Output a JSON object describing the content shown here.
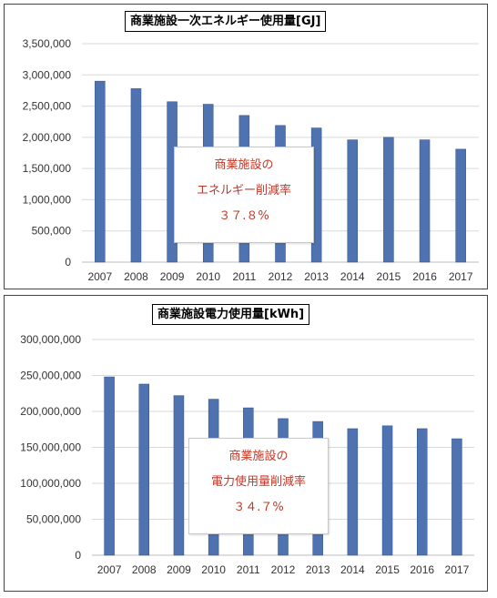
{
  "chart_data": [
    {
      "type": "bar",
      "title": "商業施設一次エネルギー使用量[GJ]",
      "categories": [
        "2007",
        "2008",
        "2009",
        "2010",
        "2011",
        "2012",
        "2013",
        "2014",
        "2015",
        "2016",
        "2017"
      ],
      "values": [
        2900000,
        2780000,
        2570000,
        2530000,
        2350000,
        2190000,
        2150000,
        1960000,
        2000000,
        1960000,
        1810000
      ],
      "ylim": [
        0,
        3500000
      ],
      "yticks": [
        0,
        500000,
        1000000,
        1500000,
        2000000,
        2500000,
        3000000,
        3500000
      ],
      "ytick_labels": [
        "0",
        "500,000",
        "1,000,000",
        "1,500,000",
        "2,000,000",
        "2,500,000",
        "3,000,000",
        "3,500,000"
      ],
      "grid": true,
      "bar_color": "#4f73b0",
      "annotation": {
        "line1": "商業施設の",
        "line2": "エネルギー削減率",
        "line3": "３７.８%"
      }
    },
    {
      "type": "bar",
      "title": "商業施設電力使用量[kWh]",
      "categories": [
        "2007",
        "2008",
        "2009",
        "2010",
        "2011",
        "2012",
        "2013",
        "2014",
        "2015",
        "2016",
        "2017"
      ],
      "values": [
        248000000,
        238000000,
        222000000,
        217000000,
        205000000,
        190000000,
        186000000,
        176000000,
        180000000,
        176000000,
        162000000
      ],
      "ylim": [
        0,
        300000000
      ],
      "yticks": [
        0,
        50000000,
        100000000,
        150000000,
        200000000,
        250000000,
        300000000
      ],
      "ytick_labels": [
        "0",
        "50,000,000",
        "100,000,000",
        "150,000,000",
        "200,000,000",
        "250,000,000",
        "300,000,000"
      ],
      "grid": true,
      "bar_color": "#4f73b0",
      "annotation": {
        "line1": "商業施設の",
        "line2": "電力使用量削減率",
        "line3": "３４.７%"
      }
    }
  ]
}
